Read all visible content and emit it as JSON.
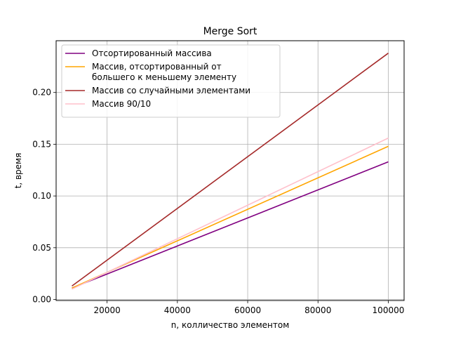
{
  "chart_data": {
    "type": "line",
    "title": "Merge Sort",
    "xlabel": "n, колличество элементом",
    "ylabel": "t, время",
    "xlim": [
      5500,
      104500
    ],
    "ylim": [
      -0.001,
      0.25
    ],
    "xticks": [
      20000,
      40000,
      60000,
      80000,
      100000
    ],
    "xtick_labels": [
      "20000",
      "40000",
      "60000",
      "80000",
      "100000"
    ],
    "yticks": [
      0.0,
      0.05,
      0.1,
      0.15,
      0.2
    ],
    "ytick_labels": [
      "0.00",
      "0.05",
      "0.10",
      "0.15",
      "0.20"
    ],
    "grid": true,
    "legend_position": "top-left",
    "x": [
      10000,
      100000
    ],
    "series": [
      {
        "name": "Отсортированный массива",
        "color": "#800080",
        "values": [
          0.011,
          0.133
        ]
      },
      {
        "name": "Массив, отсортированный от\nбольшего к меньшему элементу",
        "color": "#ffa500",
        "values": [
          0.011,
          0.148
        ]
      },
      {
        "name": "Массив со случайными элементами",
        "color": "#a52a2a",
        "values": [
          0.013,
          0.238
        ]
      },
      {
        "name": "Массив 90/10",
        "color": "#ffc0cb",
        "values": [
          0.01,
          0.156
        ]
      }
    ]
  }
}
